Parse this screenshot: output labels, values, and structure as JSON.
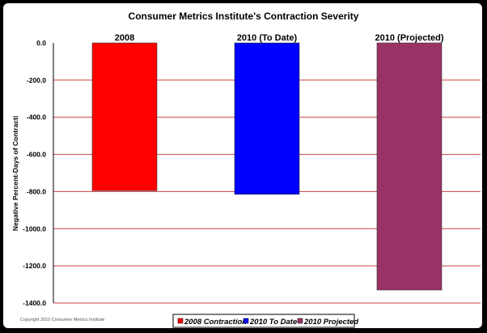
{
  "chart_data": {
    "type": "bar",
    "title": "Consumer Metrics Institute's Contraction Severity",
    "ylabel": "Negative Percent-Days of Contracti",
    "categories": [
      "2008",
      "2010 (To Date)",
      "2010 (Projected)"
    ],
    "series": [
      {
        "name": "2008 Contraction",
        "values": [
          -795,
          null,
          null
        ]
      },
      {
        "name": "2010 To Date",
        "values": [
          null,
          -815,
          null
        ]
      },
      {
        "name": "2010 Projected",
        "values": [
          null,
          null,
          -1330
        ]
      }
    ],
    "ylim": [
      -1400,
      0
    ],
    "yticks": [
      0,
      -200,
      -400,
      -600,
      -800,
      -1000,
      -1200,
      -1400
    ],
    "ytick_labels": [
      "0.0",
      "-200.0",
      "-400.0",
      "-600.0",
      "-800.0",
      "-1000.0",
      "-1200.0",
      "-1400.0"
    ],
    "grid": true,
    "legend_position": "bottom",
    "colors": {
      "2008 Contraction": "#ff0000",
      "2010 To Date": "#0000ff",
      "2010 Projected": "#993366",
      "grid": "#d04040"
    }
  },
  "footer": {
    "copyright": "Copyright 2010 Consumer Metrics Institute"
  }
}
